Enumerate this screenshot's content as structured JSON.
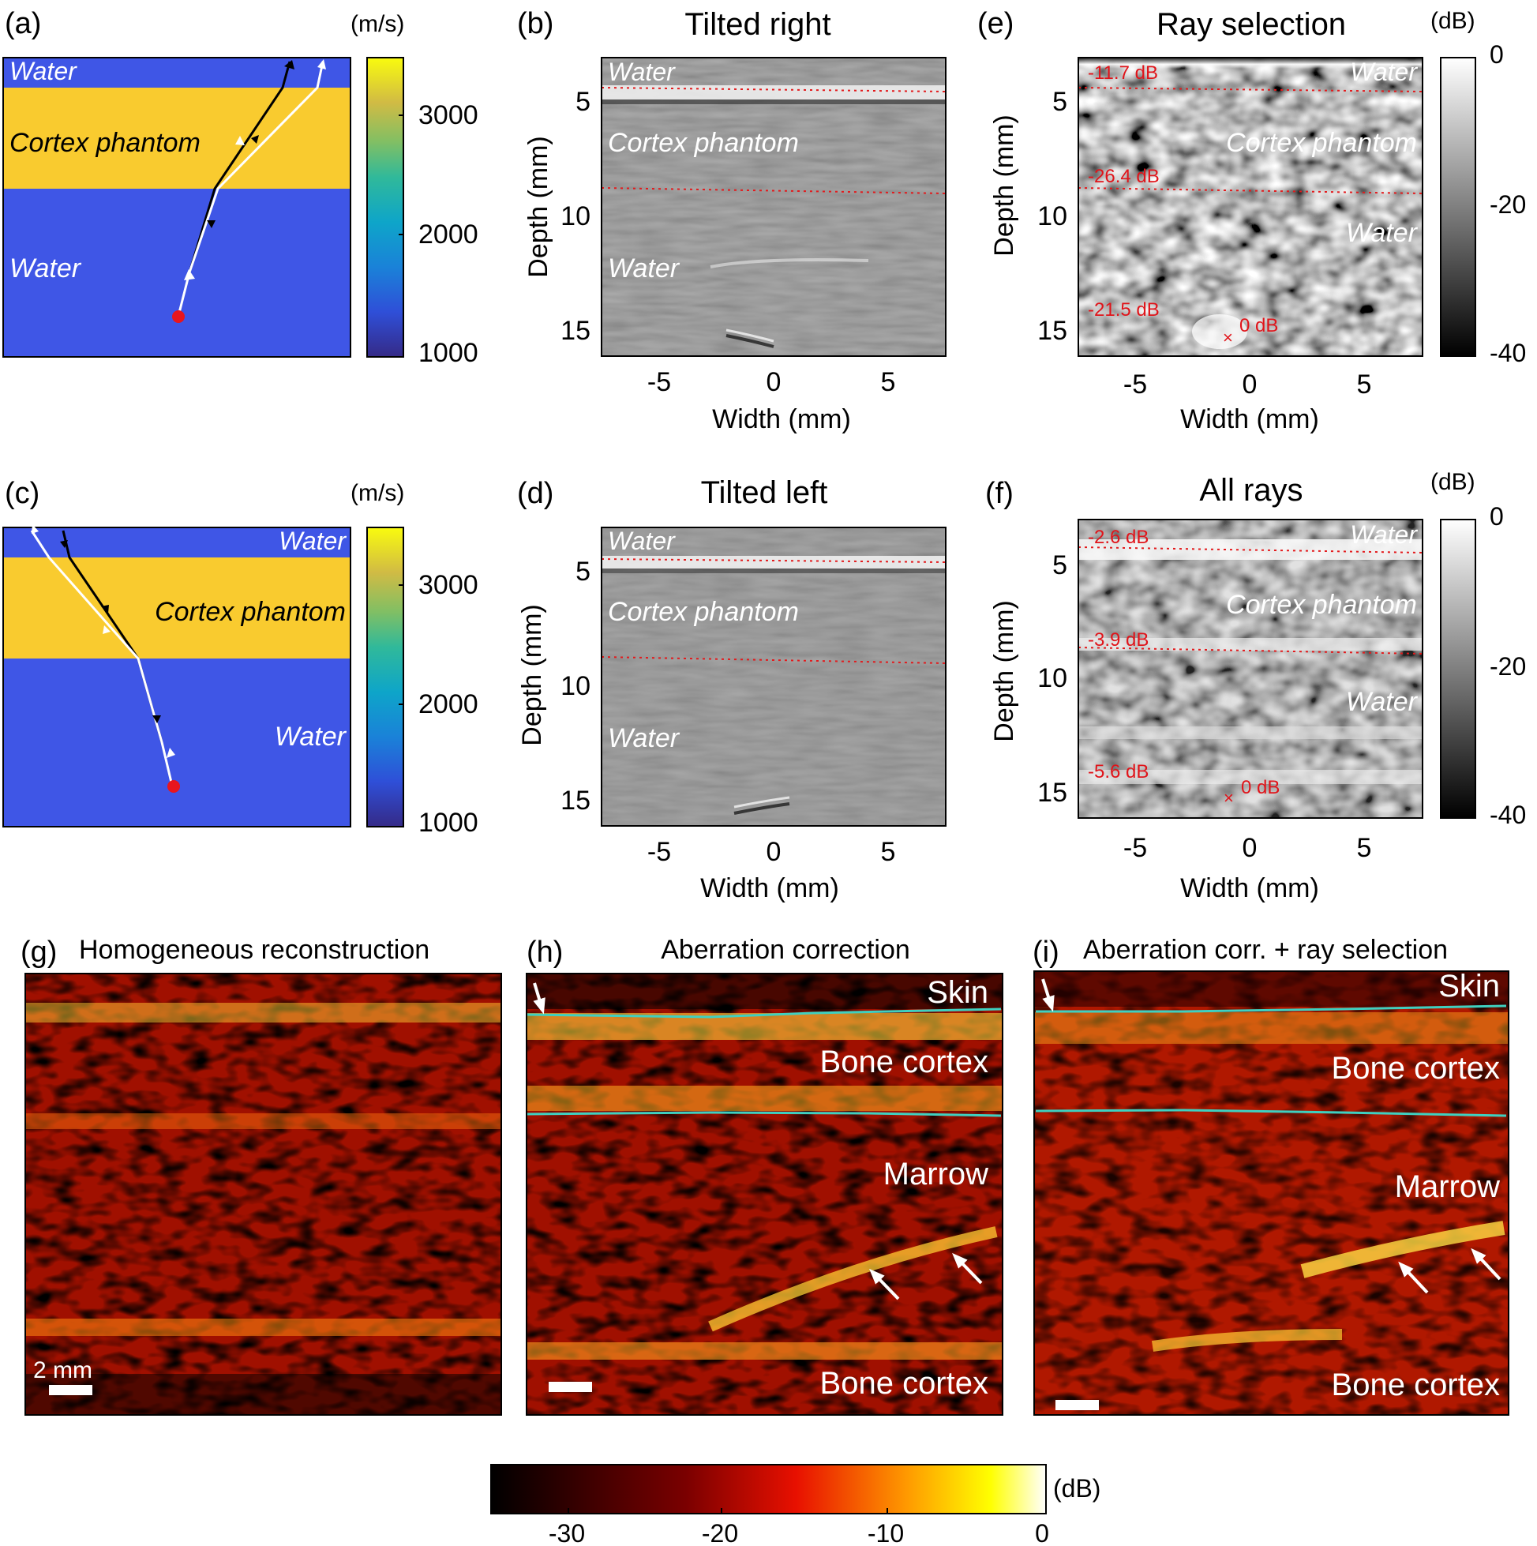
{
  "panels": {
    "a": {
      "letter": "(a)",
      "unit": "(m/s)",
      "layers": [
        "Water",
        "Cortex phantom",
        "Water"
      ],
      "colorbar_ticks": [
        "3000",
        "2000",
        "1000"
      ]
    },
    "b": {
      "letter": "(b)",
      "title": "Tilted right",
      "layers": [
        "Water",
        "Cortex phantom",
        "Water"
      ],
      "ylabel": "Depth (mm)",
      "xlabel": "Width (mm)",
      "yticks": [
        "5",
        "10",
        "15"
      ],
      "xticks": [
        "-5",
        "0",
        "5"
      ]
    },
    "c": {
      "letter": "(c)",
      "unit": "(m/s)",
      "layers": [
        "Water",
        "Cortex phantom",
        "Water"
      ],
      "colorbar_ticks": [
        "3000",
        "2000",
        "1000"
      ]
    },
    "d": {
      "letter": "(d)",
      "title": "Tilted left",
      "layers": [
        "Water",
        "Cortex phantom",
        "Water"
      ],
      "ylabel": "Depth (mm)",
      "xlabel": "Width (mm)",
      "yticks": [
        "5",
        "10",
        "15"
      ],
      "xticks": [
        "-5",
        "0",
        "5"
      ]
    },
    "e": {
      "letter": "(e)",
      "title": "Ray selection",
      "unit": "(dB)",
      "layers": [
        "Water",
        "Cortex phantom",
        "Water"
      ],
      "db_labels": [
        "-11.7 dB",
        "-26.4 dB",
        "-21.5 dB",
        "0 dB"
      ],
      "ylabel": "Depth (mm)",
      "xlabel": "Width (mm)",
      "yticks": [
        "5",
        "10",
        "15"
      ],
      "xticks": [
        "-5",
        "0",
        "5"
      ],
      "colorbar_ticks": [
        "0",
        "-20",
        "-40"
      ]
    },
    "f": {
      "letter": "(f)",
      "title": "All rays",
      "unit": "(dB)",
      "layers": [
        "Water",
        "Cortex phantom",
        "Water"
      ],
      "db_labels": [
        "-2.6 dB",
        "-3.9 dB",
        "-5.6 dB",
        "0 dB"
      ],
      "ylabel": "Depth (mm)",
      "xlabel": "Width (mm)",
      "yticks": [
        "5",
        "10",
        "15"
      ],
      "xticks": [
        "-5",
        "0",
        "5"
      ],
      "colorbar_ticks": [
        "0",
        "-20",
        "-40"
      ]
    },
    "g": {
      "letter": "(g)",
      "title": "Homogeneous reconstruction",
      "scalebar": "2 mm"
    },
    "h": {
      "letter": "(h)",
      "title": "Aberration correction",
      "labels": [
        "Skin",
        "Bone cortex",
        "Marrow",
        "Bone cortex"
      ]
    },
    "i": {
      "letter": "(i)",
      "title": "Aberration corr. + ray selection",
      "labels": [
        "Skin",
        "Bone cortex",
        "Marrow",
        "Bone cortex"
      ]
    }
  },
  "bottom_colorbar": {
    "unit": "(dB)",
    "ticks": [
      "-30",
      "-20",
      "-10",
      "0"
    ]
  },
  "colors": {
    "water": "#3f56e6",
    "cortex": "#f9cb2f",
    "source": "#e8151d",
    "dotted_line": "#e31a1c",
    "cyan_boundary": "#3fd0c0",
    "red_label": "#e0141a"
  }
}
